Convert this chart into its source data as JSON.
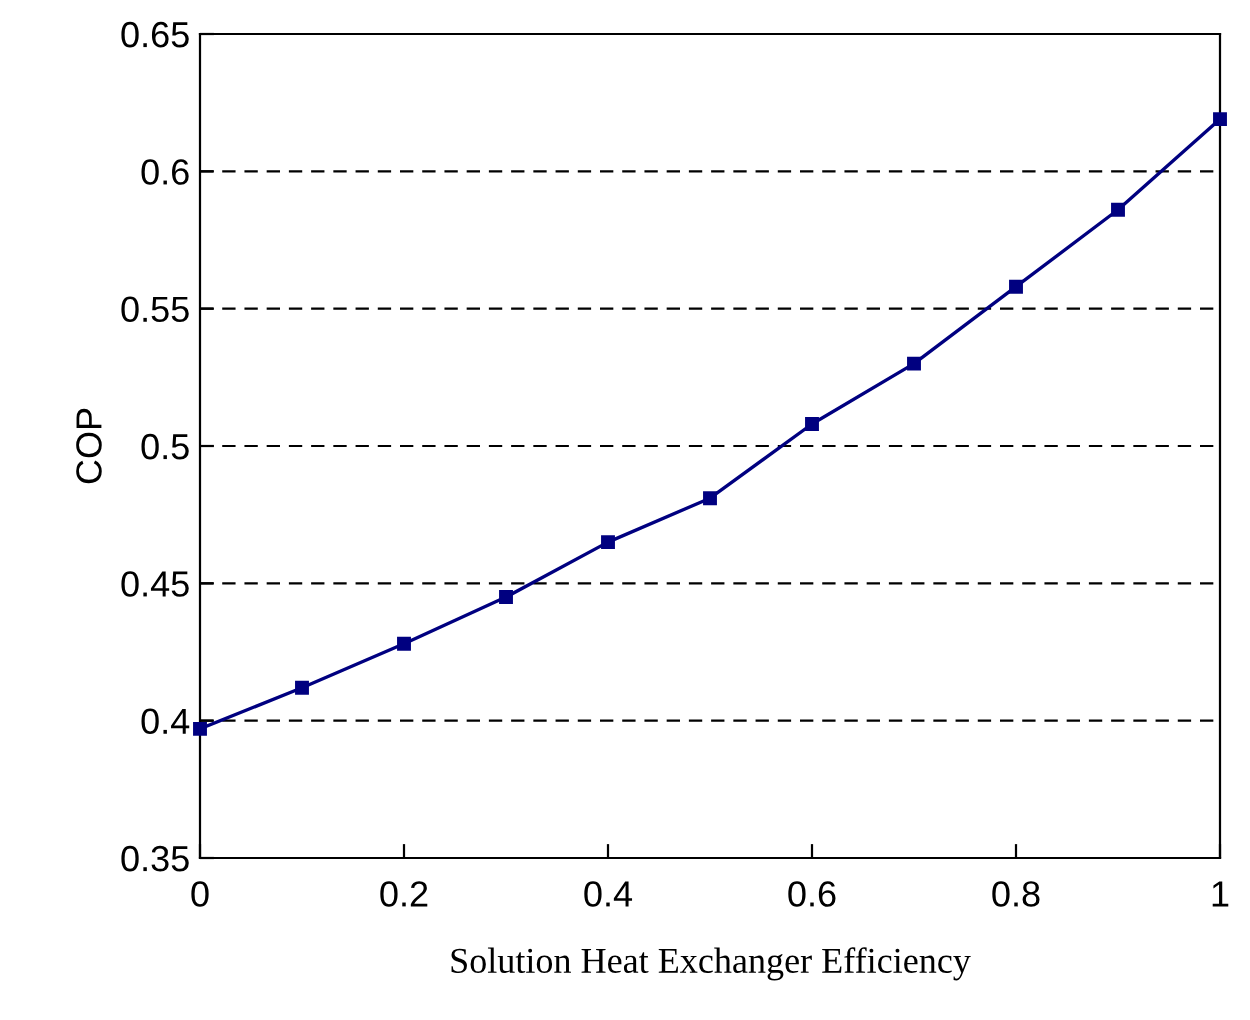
{
  "chart_data": {
    "type": "line",
    "xlabel": "Solution Heat Exchanger Efficiency",
    "ylabel": "COP",
    "x": [
      0,
      0.1,
      0.2,
      0.3,
      0.4,
      0.5,
      0.6,
      0.7,
      0.8,
      0.9,
      1.0
    ],
    "series": [
      {
        "color": "#000080",
        "values": [
          0.397,
          0.412,
          0.428,
          0.445,
          0.465,
          0.481,
          0.508,
          0.53,
          0.558,
          0.586,
          0.619
        ]
      }
    ],
    "marker": "square",
    "line_style": "solid",
    "xlim": [
      0,
      1
    ],
    "ylim": [
      0.35,
      0.65
    ],
    "xticks": [
      0,
      0.2,
      0.4,
      0.6,
      0.8,
      1
    ],
    "yticks": [
      0.35,
      0.4,
      0.45,
      0.5,
      0.55,
      0.6,
      0.65
    ],
    "grid": "y"
  }
}
